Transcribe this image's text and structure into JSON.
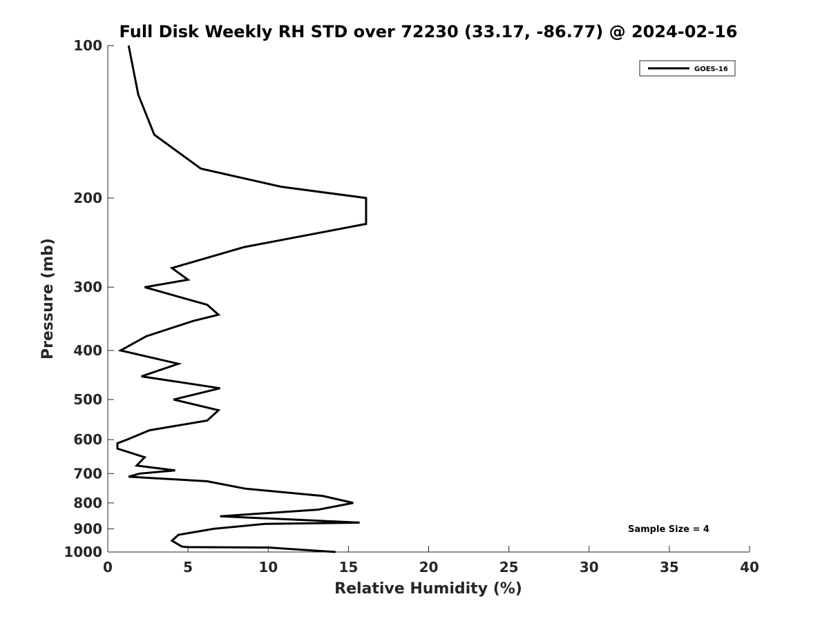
{
  "chart_data": {
    "type": "line",
    "title": "Full Disk Weekly RH STD over 72230 (33.17, -86.77) @ 2024-02-16",
    "xlabel": "Relative Humidity (%)",
    "ylabel": "Pressure (mb)",
    "xlim": [
      0,
      40
    ],
    "ylim": [
      100,
      1000
    ],
    "yscale": "log",
    "y_reversed": true,
    "grid": false,
    "xticks": [
      0,
      5,
      10,
      15,
      20,
      25,
      30,
      35,
      40
    ],
    "xtick_labels": [
      "0",
      "5",
      "10",
      "15",
      "20",
      "25",
      "30",
      "35",
      "40"
    ],
    "yticks": [
      100,
      200,
      300,
      400,
      500,
      600,
      700,
      800,
      900,
      1000
    ],
    "ytick_labels": [
      "100",
      "200",
      "300",
      "400",
      "500",
      "600",
      "700",
      "800",
      "900",
      "1000"
    ],
    "legend": {
      "position": "top-right",
      "entries": [
        "GOES-16"
      ]
    },
    "annotation": "Sample Size = 4",
    "series": [
      {
        "name": "GOES-16",
        "color": "#000000",
        "points": [
          [
            1.3,
            100
          ],
          [
            1.9,
            125
          ],
          [
            2.9,
            150
          ],
          [
            5.8,
            175
          ],
          [
            10.8,
            190
          ],
          [
            16.1,
            200
          ],
          [
            16.1,
            225
          ],
          [
            8.5,
            250
          ],
          [
            4.0,
            275
          ],
          [
            5.0,
            290
          ],
          [
            2.3,
            300
          ],
          [
            6.2,
            325
          ],
          [
            6.9,
            340
          ],
          [
            5.3,
            350
          ],
          [
            2.4,
            375
          ],
          [
            0.8,
            400
          ],
          [
            4.4,
            425
          ],
          [
            2.1,
            450
          ],
          [
            7.0,
            475
          ],
          [
            4.1,
            500
          ],
          [
            6.9,
            525
          ],
          [
            6.2,
            550
          ],
          [
            2.6,
            575
          ],
          [
            1.2,
            600
          ],
          [
            0.6,
            610
          ],
          [
            0.6,
            625
          ],
          [
            2.3,
            650
          ],
          [
            1.8,
            675
          ],
          [
            4.2,
            690
          ],
          [
            2.0,
            700
          ],
          [
            1.3,
            710
          ],
          [
            6.2,
            725
          ],
          [
            8.6,
            750
          ],
          [
            13.4,
            775
          ],
          [
            15.3,
            800
          ],
          [
            13.1,
            825
          ],
          [
            7.0,
            850
          ],
          [
            15.7,
            875
          ],
          [
            9.8,
            880
          ],
          [
            6.6,
            900
          ],
          [
            4.4,
            925
          ],
          [
            4.0,
            950
          ],
          [
            4.6,
            975
          ],
          [
            4.9,
            978
          ],
          [
            10.0,
            980
          ],
          [
            14.2,
            1000
          ]
        ]
      }
    ]
  }
}
